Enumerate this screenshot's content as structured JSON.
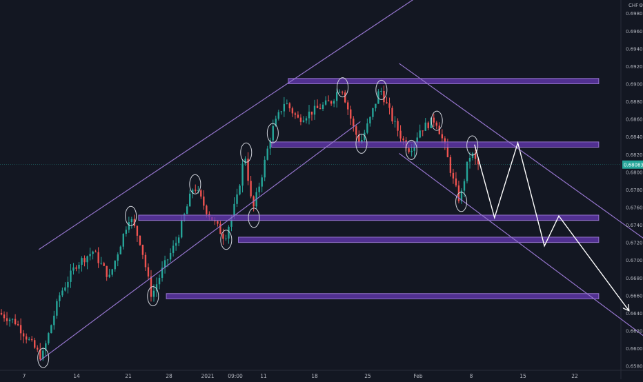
{
  "chart_data": {
    "type": "candlestick",
    "currency": "CHF",
    "last_price": "0.68083",
    "y_ticks": [
      "0.69800",
      "0.69600",
      "0.69400",
      "0.69200",
      "0.69000",
      "0.68800",
      "0.68600",
      "0.68400",
      "0.68200",
      "0.68000",
      "0.67800",
      "0.67600",
      "0.67400",
      "0.67200",
      "0.67000",
      "0.66800",
      "0.66600",
      "0.66400",
      "0.66200",
      "0.66000",
      "0.65800"
    ],
    "x_ticks": [
      "7",
      "14",
      "21",
      "28",
      "2021",
      "09:00",
      "11",
      "18",
      "25",
      "Feb",
      "8",
      "15",
      "22"
    ],
    "ylim": [
      0.6575,
      0.6995
    ],
    "x_days": [
      -3,
      53
    ],
    "grid": false,
    "support_resistance_zones": [
      {
        "from_day": 23,
        "to_day": 51,
        "price_low": 0.69,
        "price_high": 0.6906
      },
      {
        "from_day": 21.5,
        "to_day": 51,
        "price_low": 0.6828,
        "price_high": 0.6834
      },
      {
        "from_day": 9.5,
        "to_day": 51,
        "price_low": 0.6745,
        "price_high": 0.6751
      },
      {
        "from_day": 18.5,
        "to_day": 51,
        "price_low": 0.672,
        "price_high": 0.6726
      },
      {
        "from_day": 12,
        "to_day": 51,
        "price_low": 0.6656,
        "price_high": 0.6662
      }
    ],
    "trend_channels": [
      {
        "name": "ascending",
        "start": [
          0.6,
          0.6586
        ],
        "end": [
          29.5,
          0.6857
        ],
        "upper_start": [
          0.5,
          0.6712
        ],
        "upper_end": [
          36,
          0.701
        ]
      },
      {
        "name": "descending",
        "start": [
          33,
          0.6821
        ],
        "end": [
          56,
          0.6605
        ],
        "upper_start": [
          33,
          0.6923
        ],
        "upper_end": [
          56,
          0.6716
        ]
      }
    ],
    "projection_path": [
      [
        39.8,
        0.6831
      ],
      [
        41.6,
        0.6748
      ],
      [
        43.7,
        0.6833
      ],
      [
        46.1,
        0.6716
      ],
      [
        47.4,
        0.675
      ],
      [
        53.7,
        0.6643
      ]
    ],
    "highlight_ellipses": [
      [
        0.9,
        0.6589
      ],
      [
        8.8,
        0.675
      ],
      [
        10.8,
        0.6659
      ],
      [
        14.6,
        0.6786
      ],
      [
        17.4,
        0.6723
      ],
      [
        19.2,
        0.6822
      ],
      [
        19.9,
        0.6748
      ],
      [
        21.6,
        0.6844
      ],
      [
        27.9,
        0.6896
      ],
      [
        31.4,
        0.6893
      ],
      [
        29.6,
        0.6832
      ],
      [
        34.1,
        0.6825
      ],
      [
        36.4,
        0.6858
      ],
      [
        38.6,
        0.6766
      ],
      [
        39.6,
        0.683
      ]
    ]
  }
}
